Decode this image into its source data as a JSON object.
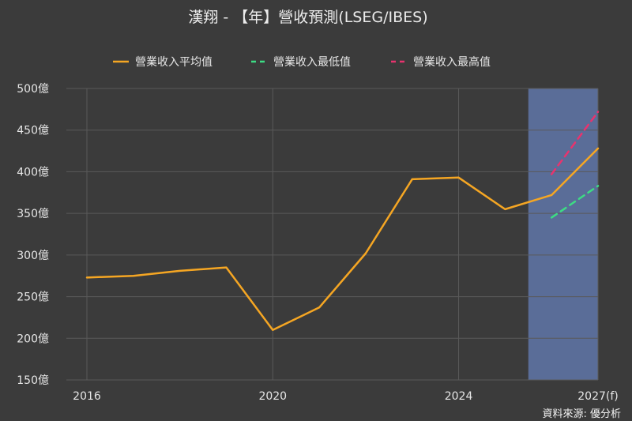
{
  "chart_data": {
    "type": "line",
    "title": "漢翔 - 【年】營收預測(LSEG/IBES)",
    "x": [
      2016,
      2017,
      2018,
      2019,
      2020,
      2021,
      2022,
      2023,
      2024,
      2025,
      2026,
      2027
    ],
    "x_tick_values": [
      2016,
      2020,
      2024,
      2027
    ],
    "x_tick_labels": [
      "2016",
      "2020",
      "2024",
      "2027(f)"
    ],
    "y_tick_values": [
      150,
      200,
      250,
      300,
      350,
      400,
      450,
      500
    ],
    "y_tick_labels": [
      "150億",
      "200億",
      "250億",
      "300億",
      "350億",
      "400億",
      "450億",
      "500億"
    ],
    "ylim": [
      150,
      500
    ],
    "xlim": [
      2016,
      2027
    ],
    "grid": true,
    "legend_position": "top",
    "forecast_region": [
      2025.5,
      2027
    ],
    "series": [
      {
        "name": "營業收入平均值",
        "style": "solid",
        "color": "#f5a623",
        "x": [
          2016,
          2017,
          2018,
          2019,
          2020,
          2021,
          2022,
          2023,
          2024,
          2025,
          2026,
          2027
        ],
        "values": [
          273,
          275,
          281,
          285,
          210,
          237,
          302,
          391,
          393,
          355,
          372,
          428
        ]
      },
      {
        "name": "營業收入最低值",
        "style": "dashed",
        "color": "#3ddc84",
        "x": [
          2026,
          2027
        ],
        "values": [
          345,
          383
        ]
      },
      {
        "name": "營業收入最高值",
        "style": "dashed",
        "color": "#e8336e",
        "x": [
          2026,
          2027
        ],
        "values": [
          397,
          472
        ]
      }
    ]
  },
  "source": "資料來源: 優分析",
  "colors": {
    "background": "#3b3b3b",
    "grid": "#5a5a5a",
    "forecast_band": "#5a6d98"
  }
}
